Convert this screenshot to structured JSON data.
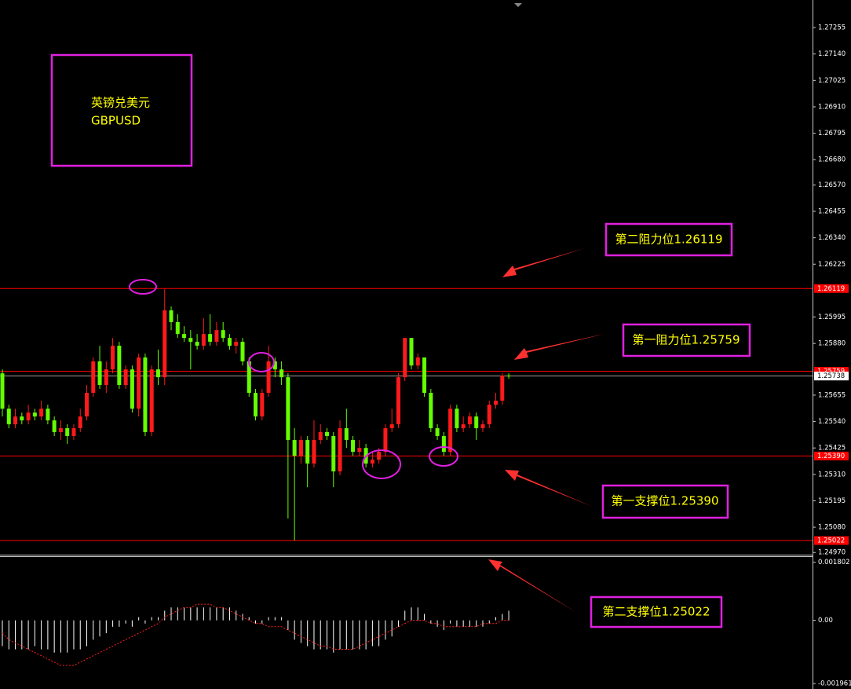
{
  "chart_data": [
    {
      "type": "candlestick",
      "title": "英镑兑美元",
      "subtitle": "GBPUSD",
      "up_color": "#ff1a1a",
      "down_color": "#66ff00",
      "ylim": [
        1.24964,
        1.27375
      ],
      "yticks": [
        1.27255,
        {
          "value": 1.2714,
          "label": "1.27140"
        },
        1.27025,
        {
          "value": 1.2691,
          "label": "1.26910"
        },
        1.26795,
        {
          "value": 1.2668,
          "label": "1.26680"
        },
        {
          "value": 1.2657,
          "label": "1.26570"
        },
        1.26455,
        {
          "value": 1.2634,
          "label": "1.26340"
        },
        1.26225,
        1.25995,
        {
          "value": 1.2588,
          "label": "1.25880"
        },
        1.25655,
        {
          "value": 1.2554,
          "label": "1.25540"
        },
        1.25425,
        {
          "value": 1.2531,
          "label": "1.25310"
        },
        1.25195,
        {
          "value": 1.2508,
          "label": "1.25080"
        },
        {
          "value": 1.2497,
          "label": "1.24970"
        }
      ],
      "levels": [
        {
          "value": 1.26119,
          "label": "1.26119"
        },
        {
          "value": 1.25759,
          "label": "1.25759"
        },
        {
          "value": 1.2539,
          "label": "1.25390"
        },
        {
          "value": 1.25022,
          "label": "1.25022"
        }
      ],
      "level_color": "#ff0000",
      "current_price": {
        "value": 1.25738,
        "label": "1.25738"
      },
      "annotations": [
        "第二阻力位1.26119",
        "第一阻力位1.25759",
        "第一支撑位1.25390",
        "第二支撑位1.25022"
      ],
      "open": [
        1.2575,
        1.25596,
        1.25528,
        1.25562,
        1.25545,
        1.25579,
        1.25562,
        1.25596,
        1.25545,
        1.25494,
        1.25511,
        1.25477,
        1.25511,
        1.25562,
        1.25665,
        1.25802,
        1.25699,
        1.25767,
        1.2587,
        1.25699,
        1.25767,
        1.25596,
        1.25819,
        1.25494,
        1.25767,
        1.25733,
        1.26024,
        1.25973,
        1.25921,
        1.25904,
        1.25887,
        1.2587,
        1.25921,
        1.25887,
        1.25938,
        1.25904,
        1.2587,
        1.25887,
        1.25802,
        1.25665,
        1.25562,
        1.25665,
        1.25802,
        1.25767,
        1.25733,
        1.2546,
        1.25391,
        1.2546,
        1.25357,
        1.2546,
        1.25494,
        1.25477,
        1.25323,
        1.25511,
        1.2546,
        1.25408,
        1.25425,
        1.25357,
        1.25374,
        1.25408,
        1.25511,
        1.25528,
        1.25733,
        1.25904,
        1.25784,
        1.25819,
        1.25665,
        1.25511,
        1.25477,
        1.25408,
        1.25596,
        1.25511,
        1.25528,
        1.25562,
        1.25511,
        1.25528,
        1.25613,
        1.25631,
        1.2574
      ],
      "high": [
        1.25767,
        1.25613,
        1.25596,
        1.25579,
        1.25613,
        1.25596,
        1.25631,
        1.25613,
        1.25562,
        1.25545,
        1.25528,
        1.25528,
        1.25596,
        1.25699,
        1.25819,
        1.2587,
        1.25802,
        1.25904,
        1.25887,
        1.25784,
        1.25784,
        1.25836,
        1.25836,
        1.25784,
        1.25853,
        1.26116,
        1.26041,
        1.26007,
        1.25955,
        1.25938,
        1.25921,
        1.2599,
        1.26007,
        1.25973,
        1.25973,
        1.25921,
        1.25904,
        1.25904,
        1.25819,
        1.25682,
        1.25682,
        1.2587,
        1.25819,
        1.25802,
        1.2575,
        1.25511,
        1.25477,
        1.25477,
        1.25545,
        1.25528,
        1.25511,
        1.25494,
        1.25545,
        1.25596,
        1.25477,
        1.2546,
        1.25443,
        1.25408,
        1.25425,
        1.25528,
        1.25596,
        1.2575,
        1.25904,
        1.25904,
        1.25836,
        1.25819,
        1.25682,
        1.25528,
        1.25494,
        1.25613,
        1.25613,
        1.25562,
        1.25579,
        1.25579,
        1.25545,
        1.25631,
        1.25665,
        1.2575,
        1.2575
      ],
      "low": [
        1.25562,
        1.25511,
        1.25511,
        1.25528,
        1.25528,
        1.25545,
        1.25545,
        1.25528,
        1.25477,
        1.2546,
        1.25443,
        1.2546,
        1.25494,
        1.25545,
        1.25648,
        1.25682,
        1.25665,
        1.2575,
        1.25682,
        1.25682,
        1.25579,
        1.25562,
        1.25477,
        1.25477,
        1.25699,
        1.25699,
        1.25938,
        1.25904,
        1.25887,
        1.25767,
        1.25853,
        1.25853,
        1.2587,
        1.2587,
        1.25887,
        1.25853,
        1.25836,
        1.25784,
        1.25648,
        1.25545,
        1.25545,
        1.25648,
        1.25733,
        1.25699,
        1.25118,
        1.25022,
        1.25357,
        1.25254,
        1.2534,
        1.25443,
        1.2546,
        1.25254,
        1.25306,
        1.25425,
        1.25391,
        1.25391,
        1.2534,
        1.2534,
        1.25357,
        1.25391,
        1.25494,
        1.25511,
        1.25716,
        1.25767,
        1.25767,
        1.25648,
        1.25494,
        1.2546,
        1.25391,
        1.25391,
        1.25494,
        1.25494,
        1.25511,
        1.2546,
        1.25494,
        1.25511,
        1.25596,
        1.25613,
        1.25726
      ],
      "close": [
        1.25596,
        1.25528,
        1.25562,
        1.25545,
        1.25579,
        1.25562,
        1.25596,
        1.25545,
        1.25494,
        1.25511,
        1.25477,
        1.25511,
        1.25562,
        1.25665,
        1.25802,
        1.25699,
        1.25767,
        1.2587,
        1.25699,
        1.25767,
        1.25596,
        1.25819,
        1.25494,
        1.25767,
        1.25733,
        1.26024,
        1.25973,
        1.25921,
        1.25904,
        1.25887,
        1.2587,
        1.25921,
        1.25887,
        1.25938,
        1.25904,
        1.2587,
        1.25887,
        1.25802,
        1.25665,
        1.25562,
        1.25665,
        1.25802,
        1.25767,
        1.25733,
        1.2546,
        1.25391,
        1.2546,
        1.25357,
        1.2546,
        1.25494,
        1.25477,
        1.25323,
        1.25511,
        1.2546,
        1.25408,
        1.25425,
        1.25357,
        1.25374,
        1.25408,
        1.25511,
        1.25528,
        1.25733,
        1.25904,
        1.25784,
        1.25819,
        1.25665,
        1.25511,
        1.25477,
        1.25408,
        1.25596,
        1.25511,
        1.25528,
        1.25562,
        1.25511,
        1.25528,
        1.25613,
        1.25631,
        1.2574,
        1.25738
      ]
    },
    {
      "type": "macd",
      "ylim": [
        -0.00213,
        0.00194
      ],
      "yticks": [
        0.001802,
        {
          "value": 0,
          "label": "0.00"
        },
        -0.001961
      ],
      "histogram": {
        "color": "#ffffff",
        "values": [
          -0.0008,
          -0.0009,
          -0.0009,
          -0.0009,
          -0.0009,
          -0.0008,
          -0.0009,
          -0.0009,
          -0.001,
          -0.001,
          -0.001,
          -0.0009,
          -0.0009,
          -0.0008,
          -0.0006,
          -0.0005,
          -0.0004,
          -0.0002,
          -0.0002,
          -0.0001,
          -0.0002,
          0.0001,
          -0.0001,
          0.0001,
          0.0001,
          0.0003,
          0.0004,
          0.0004,
          0.0004,
          0.0004,
          0.0004,
          0.0004,
          0.0004,
          0.0004,
          0.0004,
          0.0004,
          0.0003,
          0.0002,
          0.0001,
          -0.0001,
          -0.0001,
          0.0001,
          0.0001,
          0.0001,
          -0.0003,
          -0.0006,
          -0.0007,
          -0.0008,
          -0.0009,
          -0.0009,
          -0.0009,
          -0.001,
          -0.0009,
          -0.0009,
          -0.0009,
          -0.0009,
          -0.0009,
          -0.0008,
          -0.0008,
          -0.0006,
          -0.0005,
          -0.0002,
          0.0003,
          0.0004,
          0.0004,
          0.0002,
          -0.0001,
          -0.0002,
          -0.0003,
          -0.0001,
          -0.0002,
          -0.0002,
          -0.0002,
          -0.0002,
          -0.0002,
          -0.0001,
          0.0001,
          0.0002,
          0.0003
        ]
      },
      "signal": {
        "color": "#ff2020",
        "values": [
          -0.0004,
          -0.0006,
          -0.0007,
          -0.0008,
          -0.0009,
          -0.001,
          -0.0011,
          -0.0012,
          -0.0013,
          -0.0014,
          -0.0014,
          -0.0014,
          -0.0013,
          -0.0012,
          -0.0011,
          -0.001,
          -0.0009,
          -0.0008,
          -0.0007,
          -0.0006,
          -0.0005,
          -0.0004,
          -0.0003,
          -0.0002,
          -0.0001,
          0.0001,
          0.0002,
          0.0003,
          0.0004,
          0.0004,
          0.0005,
          0.0005,
          0.0005,
          0.0004,
          0.0004,
          0.0003,
          0.0002,
          0.0001,
          0,
          -0.0001,
          -0.0001,
          -0.0002,
          -0.0002,
          -0.0002,
          -0.0003,
          -0.0004,
          -0.0005,
          -0.0006,
          -0.0007,
          -0.0008,
          -0.0008,
          -0.0009,
          -0.0009,
          -0.0009,
          -0.0009,
          -0.0008,
          -0.0007,
          -0.0006,
          -0.0005,
          -0.0004,
          -0.0003,
          -0.0002,
          -0.0001,
          0,
          0,
          0,
          -0.0001,
          -0.0001,
          -0.0002,
          -0.0002,
          -0.0002,
          -0.0002,
          -0.0002,
          -0.0002,
          -0.0001,
          -0.0001,
          -0.0001,
          0,
          0
        ]
      }
    }
  ]
}
